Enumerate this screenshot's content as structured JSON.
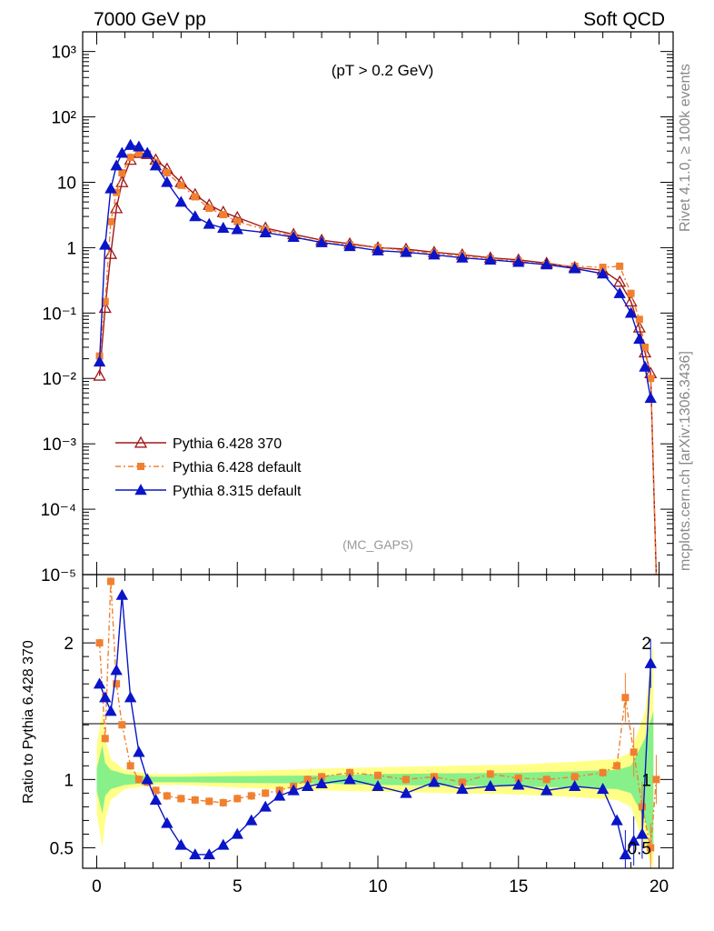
{
  "header": {
    "left_label": "7000 GeV pp",
    "right_label": "Soft QCD"
  },
  "side_labels": {
    "rivet": "Rivet 4.1.0, ≥ 100k events",
    "source": "mcplots.cern.ch [arXiv:1306.3436]"
  },
  "chart_data": [
    {
      "type": "line",
      "title": "(pT > 0.2 GeV)",
      "subtitle": "(MC_GAPS)",
      "yscale": "log",
      "xlim": [
        -0.5,
        20.5
      ],
      "ylim": [
        1e-05,
        2000
      ],
      "ytick_labels": [
        "10⁻⁵",
        "10⁻⁴",
        "10⁻³",
        "10⁻²",
        "10⁻¹",
        "1",
        "10",
        "10²",
        "10³"
      ],
      "legend": [
        {
          "name": "Pythia 6.428 370",
          "color": "#a01818",
          "marker": "open-triangle"
        },
        {
          "name": "Pythia 6.428 default",
          "color": "#f08030",
          "marker": "square"
        },
        {
          "name": "Pythia 8.315 default",
          "color": "#0a14c8",
          "marker": "triangle"
        }
      ],
      "series": [
        {
          "name": "Pythia 6.428 370",
          "x": [
            0.1,
            0.3,
            0.5,
            0.7,
            0.9,
            1.2,
            1.5,
            1.8,
            2.1,
            2.5,
            3.0,
            3.5,
            4.0,
            4.5,
            5.0,
            6.0,
            7.0,
            8.0,
            9.0,
            10.0,
            11.0,
            12.0,
            13.0,
            14.0,
            15.0,
            16.0,
            17.0,
            18.0,
            18.6,
            19.0,
            19.3,
            19.5,
            19.7,
            19.9
          ],
          "y": [
            0.011,
            0.12,
            0.8,
            4,
            10,
            22,
            28,
            27,
            22,
            16,
            10,
            6.5,
            4.5,
            3.5,
            2.9,
            2.0,
            1.6,
            1.3,
            1.15,
            1.0,
            0.95,
            0.85,
            0.78,
            0.7,
            0.65,
            0.58,
            0.5,
            0.45,
            0.3,
            0.15,
            0.06,
            0.025,
            0.012,
            1e-05
          ]
        },
        {
          "name": "Pythia 6.428 default",
          "x": [
            0.1,
            0.3,
            0.5,
            0.7,
            0.9,
            1.2,
            1.5,
            1.8,
            2.1,
            2.5,
            3.0,
            3.5,
            4.0,
            4.5,
            5.0,
            6.0,
            7.0,
            8.0,
            9.0,
            10.0,
            11.0,
            12.0,
            13.0,
            14.0,
            15.0,
            16.0,
            17.0,
            18.0,
            18.6,
            19.0,
            19.3,
            19.5,
            19.7,
            19.9
          ],
          "y": [
            0.022,
            0.15,
            2.5,
            7,
            14,
            24,
            28,
            27,
            20,
            14,
            9,
            6,
            4,
            3.2,
            2.5,
            1.9,
            1.5,
            1.2,
            1.1,
            1.0,
            0.9,
            0.82,
            0.75,
            0.68,
            0.62,
            0.55,
            0.52,
            0.5,
            0.52,
            0.2,
            0.08,
            0.03,
            0.01,
            1e-05
          ]
        },
        {
          "name": "Pythia 8.315 default",
          "x": [
            0.1,
            0.3,
            0.5,
            0.7,
            0.9,
            1.2,
            1.5,
            1.8,
            2.1,
            2.5,
            3.0,
            3.5,
            4.0,
            4.5,
            5.0,
            6.0,
            7.0,
            8.0,
            9.0,
            10.0,
            11.0,
            12.0,
            13.0,
            14.0,
            15.0,
            16.0,
            17.0,
            18.0,
            18.6,
            19.0,
            19.3,
            19.5,
            19.7
          ],
          "y": [
            0.018,
            1.1,
            8,
            18,
            28,
            37,
            35,
            28,
            18,
            10,
            5,
            3,
            2.3,
            2.0,
            1.9,
            1.7,
            1.45,
            1.2,
            1.05,
            0.9,
            0.85,
            0.78,
            0.7,
            0.65,
            0.6,
            0.55,
            0.48,
            0.4,
            0.2,
            0.1,
            0.04,
            0.015,
            0.005
          ]
        }
      ]
    },
    {
      "type": "line",
      "ylabel": "Ratio to Pythia 6.428 370",
      "xlim": [
        -0.5,
        20.5
      ],
      "ylim": [
        0.35,
        2.5
      ],
      "xticks": [
        0,
        5,
        10,
        15,
        20
      ],
      "xtick_labels": [
        "0",
        "5",
        "10",
        "15",
        "20"
      ],
      "yticks": [
        0.5,
        1,
        2
      ],
      "ytick_labels": [
        "0.5",
        "1",
        "2"
      ],
      "band": {
        "x": [
          0.0,
          0.2,
          0.3,
          0.5,
          1.0,
          2.0,
          3.0,
          5.0,
          8.0,
          10.0,
          15.0,
          17.0,
          18.5,
          19.0,
          19.5,
          19.8
        ],
        "green": [
          0.08,
          0.25,
          0.12,
          0.07,
          0.04,
          0.02,
          0.02,
          0.025,
          0.03,
          0.04,
          0.05,
          0.06,
          0.07,
          0.1,
          0.3,
          0.5
        ],
        "yellow": [
          0.25,
          0.5,
          0.3,
          0.15,
          0.07,
          0.04,
          0.04,
          0.06,
          0.08,
          0.09,
          0.11,
          0.13,
          0.15,
          0.2,
          0.5,
          1.0
        ]
      },
      "series": [
        {
          "name": "Pythia 6.428 default",
          "x": [
            0.1,
            0.3,
            0.5,
            0.7,
            0.9,
            1.2,
            1.5,
            1.8,
            2.1,
            2.5,
            3.0,
            3.5,
            4.0,
            4.5,
            5.0,
            5.5,
            6.0,
            6.5,
            7.0,
            7.5,
            8.0,
            9.0,
            10.0,
            11.0,
            12.0,
            13.0,
            14.0,
            15.0,
            16.0,
            17.0,
            18.0,
            18.5,
            18.8,
            19.1,
            19.4,
            19.7,
            19.9
          ],
          "y": [
            2.0,
            1.3,
            2.45,
            1.7,
            1.4,
            1.1,
            1.0,
            0.98,
            0.92,
            0.88,
            0.86,
            0.85,
            0.84,
            0.83,
            0.86,
            0.88,
            0.9,
            0.92,
            0.95,
            1.0,
            1.02,
            1.05,
            1.03,
            1.0,
            1.02,
            0.98,
            1.04,
            1.01,
            1.0,
            1.02,
            1.05,
            1.1,
            1.6,
            1.2,
            0.8,
            0.5,
            1.0
          ]
        },
        {
          "name": "Pythia 8.315 default",
          "x": [
            0.1,
            0.3,
            0.5,
            0.7,
            0.9,
            1.2,
            1.5,
            1.8,
            2.1,
            2.5,
            3.0,
            3.5,
            4.0,
            4.5,
            5.0,
            5.5,
            6.0,
            6.5,
            7.0,
            7.5,
            8.0,
            9.0,
            10.0,
            11.0,
            12.0,
            13.0,
            14.0,
            15.0,
            16.0,
            17.0,
            18.0,
            18.5,
            18.8,
            19.1,
            19.4,
            19.7
          ],
          "y": [
            1.7,
            1.6,
            1.5,
            1.8,
            2.35,
            1.6,
            1.2,
            1.0,
            0.85,
            0.68,
            0.52,
            0.45,
            0.45,
            0.52,
            0.6,
            0.7,
            0.8,
            0.88,
            0.92,
            0.95,
            0.97,
            1.0,
            0.95,
            0.9,
            0.98,
            0.93,
            0.95,
            0.96,
            0.92,
            0.95,
            0.93,
            0.7,
            0.45,
            0.55,
            0.6,
            1.85
          ]
        }
      ]
    }
  ]
}
